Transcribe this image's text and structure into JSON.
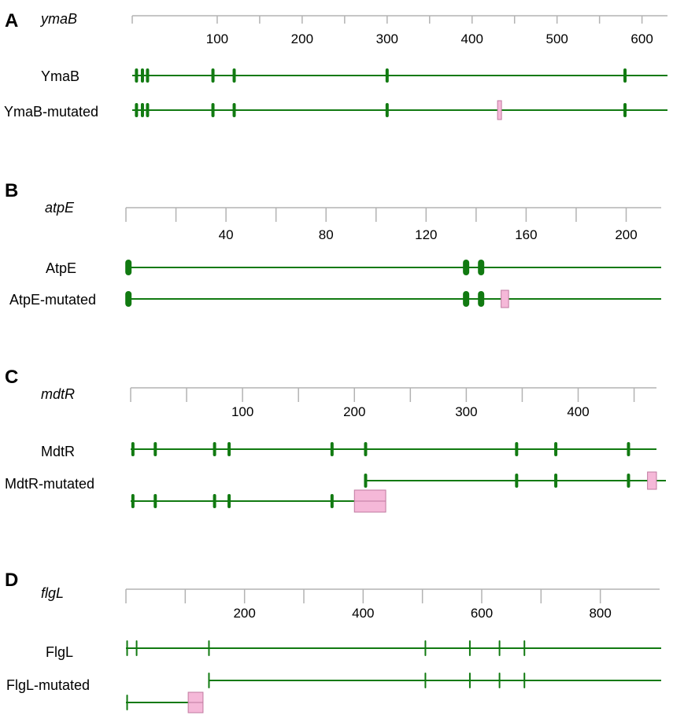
{
  "figure": {
    "panels": [
      {
        "letter": "A",
        "gene": "ymaB",
        "axis": {
          "max": 630,
          "labeled_ticks": [
            100,
            200,
            300,
            400,
            500,
            600
          ],
          "minor_ticks": [
            150,
            250,
            350,
            450,
            550
          ]
        },
        "tracks": [
          {
            "label": "YmaB",
            "sites": [
              5,
              12,
              18,
              95,
              120,
              300,
              580
            ]
          },
          {
            "label": "YmaB-mutated",
            "sites": [
              5,
              12,
              18,
              95,
              120,
              300,
              580
            ],
            "mutation": {
              "start": 430,
              "end": 434
            }
          }
        ]
      },
      {
        "letter": "B",
        "gene": "atpE",
        "axis": {
          "max": 214,
          "labeled_ticks": [
            40,
            80,
            120,
            160,
            200
          ],
          "minor_ticks": [
            20,
            60,
            100,
            140,
            180
          ]
        },
        "tracks": [
          {
            "label": "AtpE",
            "sites": [
              1,
              136,
              142
            ]
          },
          {
            "label": "AtpE-mutated",
            "sites": [
              1,
              136,
              142
            ],
            "mutation": {
              "start": 150,
              "end": 153
            }
          }
        ]
      },
      {
        "letter": "C",
        "gene": "mdtR",
        "axis": {
          "max": 470,
          "labeled_ticks": [
            100,
            200,
            300,
            400
          ],
          "minor_ticks": [
            50,
            150,
            250,
            350,
            450
          ]
        },
        "tracks": [
          {
            "label": "MdtR",
            "sites": [
              2,
              22,
              75,
              88,
              180,
              210,
              345,
              380,
              445
            ]
          },
          {
            "label": "MdtR-mutated",
            "sites": [
              210,
              345,
              380,
              445
            ],
            "mutation": {
              "start": 462,
              "end": 470
            }
          },
          {
            "label": "",
            "sites": [
              2,
              22,
              75,
              88,
              180
            ],
            "mutation": {
              "start": 200,
              "end": 228
            }
          }
        ]
      },
      {
        "letter": "D",
        "gene": "flgL",
        "axis": {
          "max": 900,
          "labeled_ticks": [
            200,
            400,
            600,
            800
          ],
          "minor_ticks": [
            100,
            300,
            500,
            700
          ]
        },
        "tracks": [
          {
            "label": "FlgL",
            "sites": [
              2,
              18,
              140,
              505,
              580,
              630,
              672
            ]
          },
          {
            "label": "FlgL-mutated",
            "sites": [
              140,
              505,
              580,
              630,
              672
            ]
          },
          {
            "label": "",
            "sites": [
              2
            ],
            "mutation": {
              "start": 105,
              "end": 130
            }
          }
        ]
      }
    ]
  },
  "colors": {
    "site": "#117a11",
    "mutation_fill": "#f5b8d8",
    "axis": "#b3b3b3"
  }
}
